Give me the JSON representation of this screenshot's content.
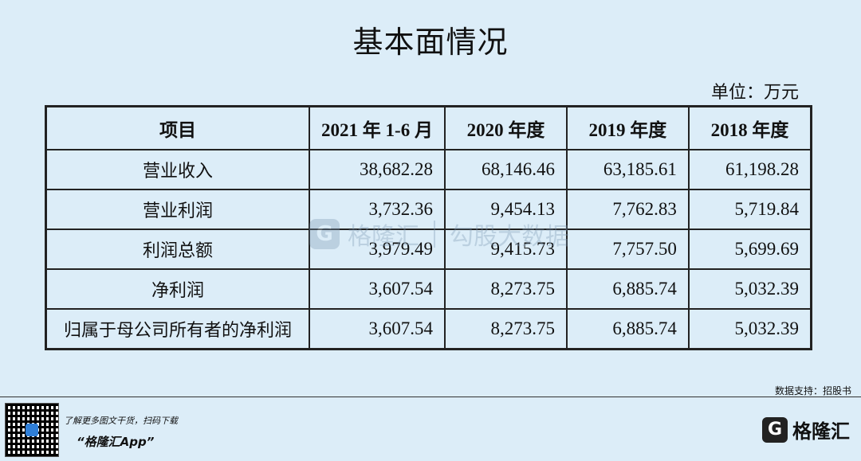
{
  "title": "基本面情况",
  "unit": "单位：万元",
  "table": {
    "headers": [
      "项目",
      "2021 年 1-6 月",
      "2020 年度",
      "2019 年度",
      "2018 年度"
    ],
    "rows": [
      {
        "label": "营业收入",
        "values": [
          "38,682.28",
          "68,146.46",
          "63,185.61",
          "61,198.28"
        ]
      },
      {
        "label": "营业利润",
        "values": [
          "3,732.36",
          "9,454.13",
          "7,762.83",
          "5,719.84"
        ]
      },
      {
        "label": "利润总额",
        "values": [
          "3,979.49",
          "9,415.73",
          "7,757.50",
          "5,699.69"
        ]
      },
      {
        "label": "净利润",
        "values": [
          "3,607.54",
          "8,273.75",
          "6,885.74",
          "5,032.39"
        ]
      },
      {
        "label": "归属于母公司所有者的净利润",
        "values": [
          "3,607.54",
          "8,273.75",
          "6,885.74",
          "5,032.39"
        ]
      }
    ]
  },
  "watermark": {
    "brand": "格隆汇",
    "slogan": "勾股大数据",
    "logo_letter": "G"
  },
  "source": "数据支持：招股书",
  "footer": {
    "promo_line1": "了解更多图文干货，扫码下载",
    "promo_line2": "“格隆汇App”",
    "brand_name": "格隆汇",
    "logo_letter": "G"
  },
  "colors": {
    "background": "#dcedf8",
    "accent": "#2f7fd8"
  }
}
